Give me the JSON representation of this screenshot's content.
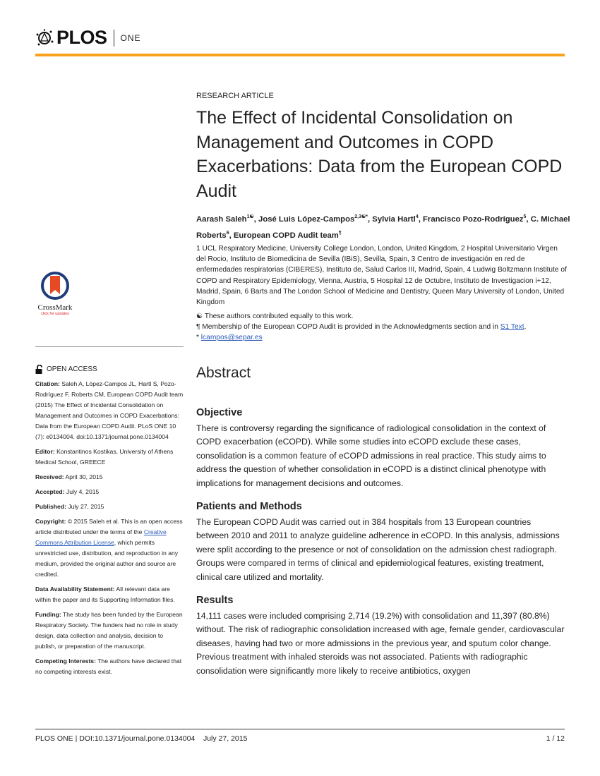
{
  "header": {
    "logo_text": "PLOS",
    "journal": "ONE",
    "accent": "#f9a11b"
  },
  "article_type": "RESEARCH ARTICLE",
  "title": "The Effect of Incidental Consolidation on Management and Outcomes in COPD Exacerbations: Data from the European COPD Audit",
  "authors": [
    {
      "name": "Aarash Saleh",
      "sup": "1☯"
    },
    {
      "name": "José Luis López-Campos",
      "sup": "2,3☯*"
    },
    {
      "name": "Sylvia Hartl",
      "sup": "4"
    },
    {
      "name": "Francisco Pozo-Rodríguez",
      "sup": "5"
    },
    {
      "name": "C. Michael Roberts",
      "sup": "6"
    },
    {
      "name": "European COPD Audit team",
      "sup": "¶"
    }
  ],
  "affiliations": "1 UCL Respiratory Medicine, University College London, London, United Kingdom, 2 Hospital Universitario Virgen del Rocio, Instituto de Biomedicina de Sevilla (IBiS), Sevilla, Spain, 3 Centro de investigación en red de enfermedades respiratorias (CIBERES), Instituto de, Salud Carlos III, Madrid, Spain, 4 Ludwig Boltzmann Institute of COPD and Respiratory Epidemiology, Vienna, Austria, 5 Hospital 12 de Octubre, Instituto de Investigacion i+12, Madrid, Spain, 6 Barts and The London School of Medicine and Dentistry, Queen Mary University of London, United Kingdom",
  "notes": {
    "equal": "☯ These authors contributed equally to this work.",
    "membership": "¶ Membership of the European COPD Audit is provided in the Acknowledgments section and in ",
    "membership_link": "S1 Text",
    "membership_end": ".",
    "corr_mark": "* ",
    "email": "lcampos@separ.es"
  },
  "crossmark": {
    "label": "CrossMark",
    "sub": "click for updates"
  },
  "sidebar": {
    "open_access": "OPEN ACCESS",
    "citation_label": "Citation:",
    "citation": " Saleh A, López-Campos JL, Hartl S, Pozo-Rodríguez F, Roberts CM, European COPD Audit team (2015) The Effect of Incidental Consolidation on Management and Outcomes in COPD Exacerbations: Data from the European COPD Audit. PLoS ONE 10 (7): e0134004. doi:10.1371/journal.pone.0134004",
    "editor_label": "Editor:",
    "editor": " Konstantinos Kostikas, University of Athens Medical School, GREECE",
    "received_label": "Received:",
    "received": " April 30, 2015",
    "accepted_label": "Accepted:",
    "accepted": " July 4, 2015",
    "published_label": "Published:",
    "published": " July 27, 2015",
    "copyright_label": "Copyright:",
    "copyright_a": " © 2015 Saleh et al. This is an open access article distributed under the terms of the ",
    "copyright_link": "Creative Commons Attribution License",
    "copyright_b": ", which permits unrestricted use, distribution, and reproduction in any medium, provided the original author and source are credited.",
    "data_label": "Data Availability Statement:",
    "data": " All relevant data are within the paper and its Supporting Information files.",
    "funding_label": "Funding:",
    "funding": " The study has been funded by the European Respiratory Society. The funders had no role in study design, data collection and analysis, decision to publish, or preparation of the manuscript.",
    "competing_label": "Competing Interests:",
    "competing": " The authors have declared that no competing interests exist."
  },
  "abstract": {
    "heading": "Abstract",
    "sections": [
      {
        "heading": "Objective",
        "text": "There is controversy regarding the significance of radiological consolidation in the context of COPD exacerbation (eCOPD). While some studies into eCOPD exclude these cases, consolidation is a common feature of eCOPD admissions in real practice. This study aims to address the question of whether consolidation in eCOPD is a distinct clinical phenotype with implications for management decisions and outcomes."
      },
      {
        "heading": "Patients and Methods",
        "text": "The European COPD Audit was carried out in 384 hospitals from 13 European countries between 2010 and 2011 to analyze guideline adherence in eCOPD. In this analysis, admissions were split according to the presence or not of consolidation on the admission chest radiograph. Groups were compared in terms of clinical and epidemiological features, existing treatment, clinical care utilized and mortality."
      },
      {
        "heading": "Results",
        "text": "14,111 cases were included comprising 2,714 (19.2%) with consolidation and 11,397 (80.8%) without. The risk of radiographic consolidation increased with age, female gender, cardiovascular diseases, having had two or more admissions in the previous year, and sputum color change. Previous treatment with inhaled steroids was not associated. Patients with radiographic consolidation were significantly more likely to receive antibiotics, oxygen"
      }
    ]
  },
  "footer": {
    "left": "PLOS ONE | DOI:10.1371/journal.pone.0134004    July 27, 2015",
    "right": "1 / 12"
  }
}
